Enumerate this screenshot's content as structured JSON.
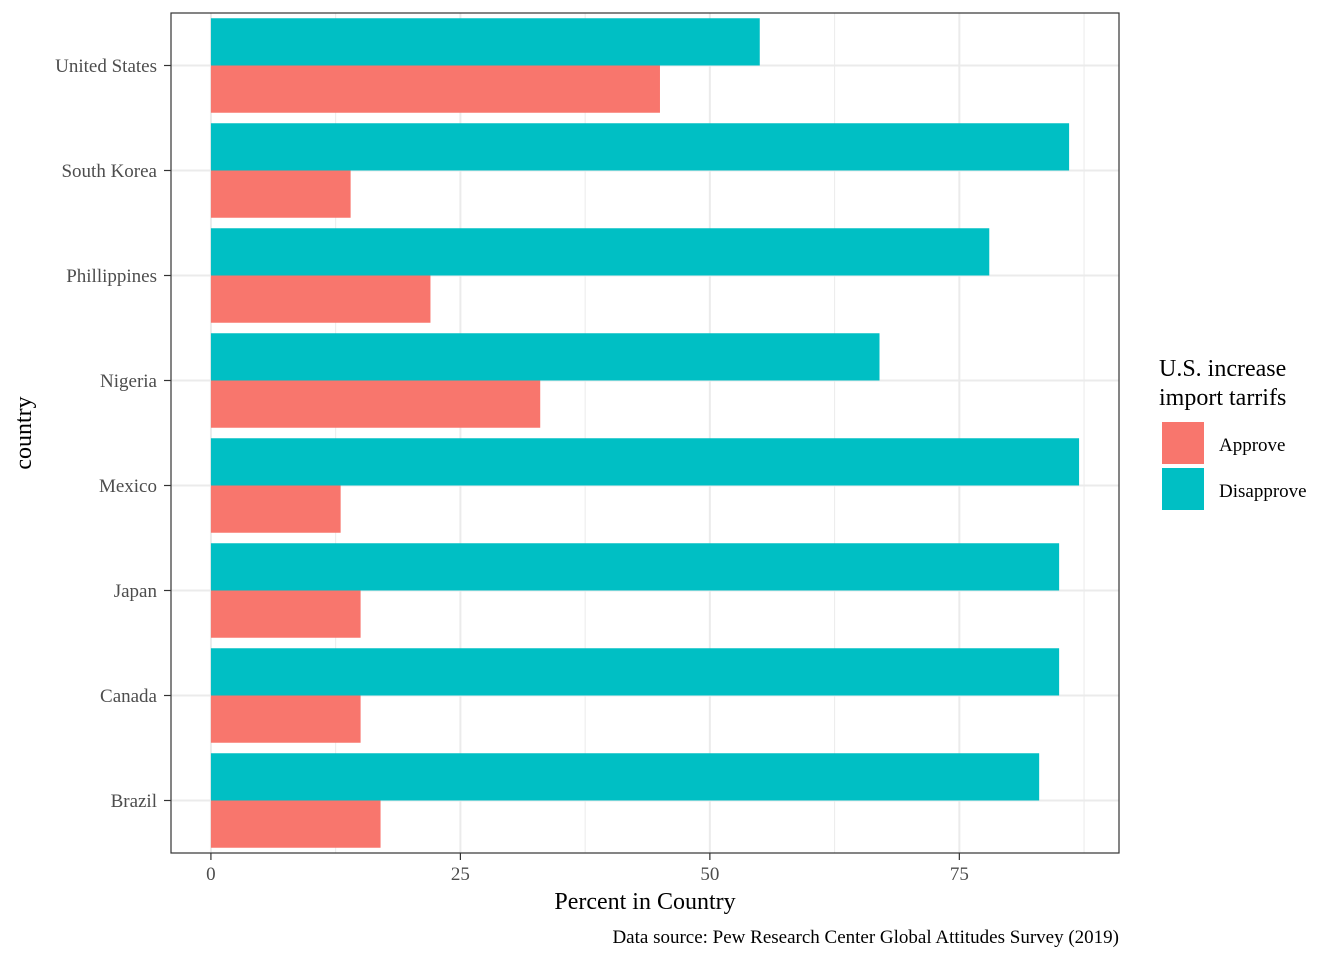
{
  "chart_data": {
    "type": "bar",
    "orientation": "horizontal",
    "categories": [
      "United States",
      "South Korea",
      "Phillippines",
      "Nigeria",
      "Mexico",
      "Japan",
      "Canada",
      "Brazil"
    ],
    "series": [
      {
        "name": "Approve",
        "color": "#F8766D",
        "values": [
          45,
          14,
          22,
          33,
          13,
          15,
          15,
          17
        ]
      },
      {
        "name": "Disapprove",
        "color": "#00BFC4",
        "values": [
          55,
          86,
          78,
          67,
          87,
          85,
          85,
          83
        ]
      }
    ],
    "xlabel": "Percent in Country",
    "ylabel": "country",
    "xlim": [
      -4,
      91
    ],
    "xticks": [
      0,
      25,
      50,
      75
    ],
    "grid": true,
    "legend": {
      "title_line1": "U.S. increase",
      "title_line2": "import tarrifs",
      "placement": "right"
    },
    "caption": "Data source: Pew Research Center Global Attitudes Survey (2019)"
  }
}
